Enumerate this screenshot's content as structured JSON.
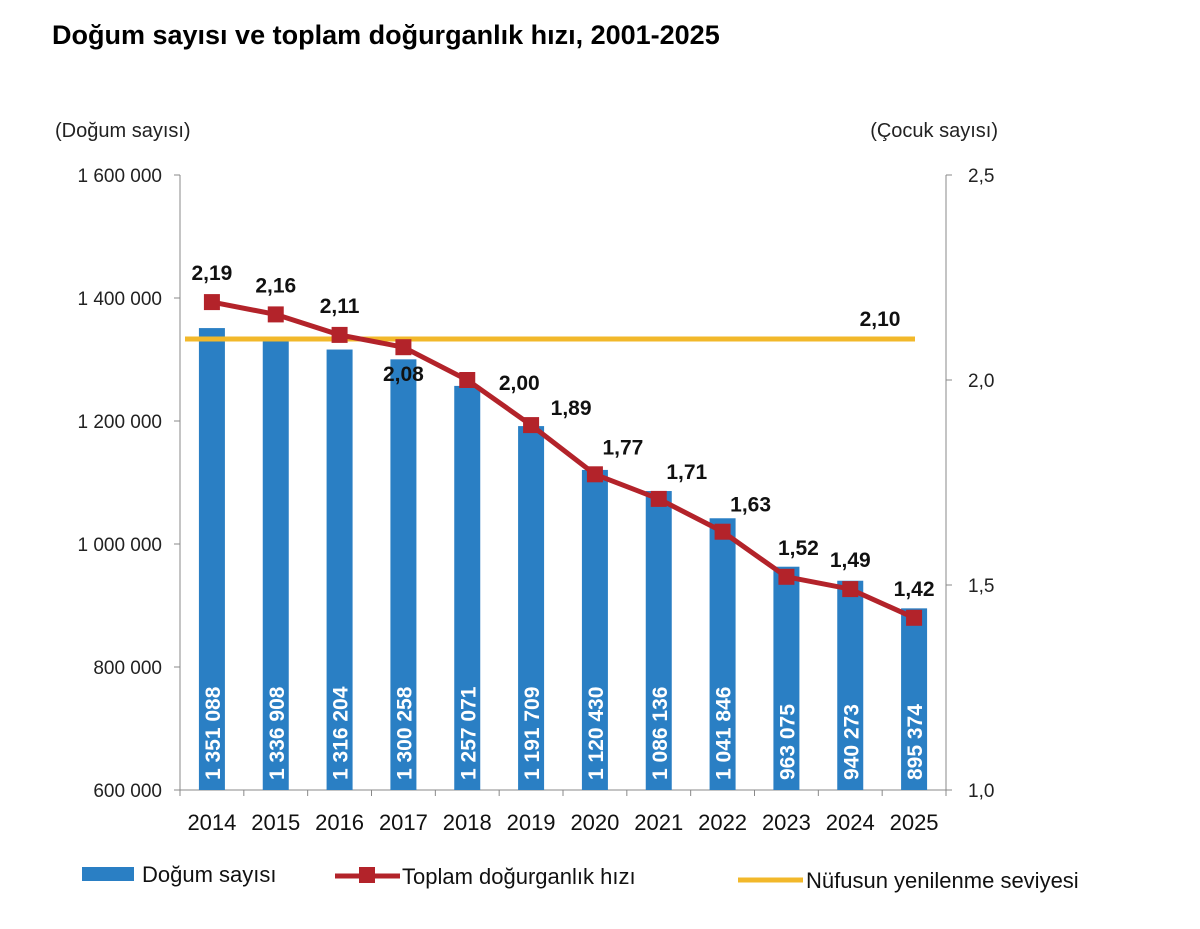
{
  "title": "Doğum sayısı ve toplam doğurganlık hızı, 2001-2025",
  "chart_data": {
    "type": "bar",
    "categories": [
      "2014",
      "2015",
      "2016",
      "2017",
      "2018",
      "2019",
      "2020",
      "2021",
      "2022",
      "2023",
      "2024",
      "2025"
    ],
    "y_left_label": "(Doğum sayısı)",
    "y_right_label": "(Çocuk sayısı)",
    "y_left_range": [
      600000,
      1600000
    ],
    "y_left_ticks": [
      600000,
      800000,
      1000000,
      1200000,
      1400000,
      1600000
    ],
    "y_left_tick_labels": [
      "600 000",
      "800 000",
      "1 000 000",
      "1 200 000",
      "1 400 000",
      "1 600 000"
    ],
    "y_right_range": [
      1.0,
      2.5
    ],
    "y_right_ticks": [
      1.0,
      1.5,
      2.0,
      2.5
    ],
    "y_right_tick_labels": [
      "1,0",
      "1,5",
      "2,0",
      "2,5"
    ],
    "series": [
      {
        "name": "Doğum sayısı",
        "type": "bar",
        "axis": "left",
        "color": "#2a7fc4",
        "values": [
          1351088,
          1336908,
          1316204,
          1300258,
          1257071,
          1191709,
          1120430,
          1086136,
          1041846,
          963075,
          940273,
          895374
        ],
        "labels": [
          "1 351 088",
          "1 336 908",
          "1 316 204",
          "1 300 258",
          "1 257 071",
          "1 191 709",
          "1 120 430",
          "1 086 136",
          "1 041 846",
          "963 075",
          "940 273",
          "895 374"
        ]
      },
      {
        "name": "Toplam doğurganlık hızı",
        "type": "line",
        "axis": "right",
        "color": "#b3232a",
        "values": [
          2.19,
          2.16,
          2.11,
          2.08,
          2.0,
          1.89,
          1.77,
          1.71,
          1.63,
          1.52,
          1.49,
          1.42
        ],
        "labels": [
          "2,19",
          "2,16",
          "2,11",
          "2,08",
          "2,00",
          "1,89",
          "1,77",
          "1,71",
          "1,63",
          "1,52",
          "1,49",
          "1,42"
        ]
      },
      {
        "name": "Nüfusun yenilenme seviyesi",
        "type": "line",
        "axis": "right",
        "color": "#f2b82a",
        "value": 2.1,
        "label": "2,10"
      }
    ],
    "grid": false,
    "legend_position": "bottom"
  }
}
